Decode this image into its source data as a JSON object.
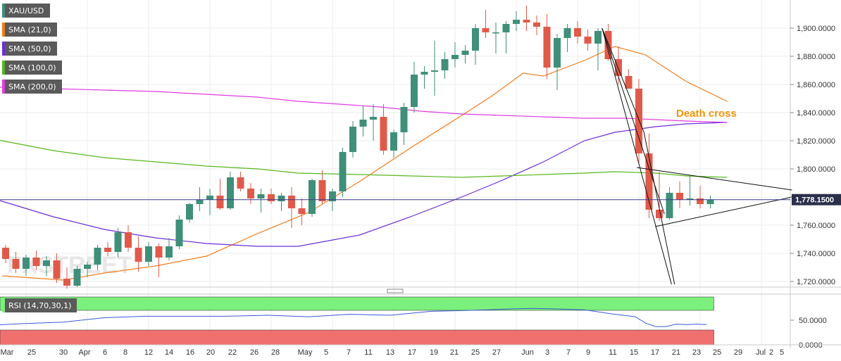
{
  "chart_data": {
    "type": "candlestick",
    "symbol": "XAU/USD",
    "price_axis": {
      "ylim": [
        1716,
        1920
      ],
      "ticks": [
        "1,720.0000",
        "1,740.0000",
        "1,760.0000",
        "1,780.0000",
        "1,800.0000",
        "1,820.0000",
        "1,840.0000",
        "1,860.0000",
        "1,880.0000",
        "1,900.0000"
      ],
      "current_price": 1778.15,
      "current_price_label": "1,778.1500"
    },
    "rsi_axis": {
      "ylim": [
        0,
        100
      ],
      "ticks": [
        "50.0000",
        "0.0000"
      ]
    },
    "x_ticks": [
      "Mar",
      "25",
      "30",
      "Apr",
      "6",
      "8",
      "12",
      "14",
      "16",
      "20",
      "22",
      "26",
      "28",
      "May",
      "5",
      "7",
      "11",
      "13",
      "17",
      "19",
      "21",
      "25",
      "27",
      "Jun",
      "3",
      "7",
      "9",
      "11",
      "15",
      "17",
      "21",
      "23",
      "25",
      "29",
      "Jul",
      "2",
      "5"
    ],
    "indicators": [
      {
        "name": "XAU/USD",
        "color": "#1a1a1a"
      },
      {
        "name": "SMA (21,0)",
        "color": "#f07c1c"
      },
      {
        "name": "SMA (50,0)",
        "color": "#6a2fd8"
      },
      {
        "name": "SMA (100,0)",
        "color": "#55b81c"
      },
      {
        "name": "SMA (200,0)",
        "color": "#e03ce0"
      }
    ],
    "rsi": {
      "name": "RSI (14,70,30,1)",
      "color": "#3a5ad8",
      "overbought_color": "#7cf07c",
      "oversold_color": "#f07070"
    },
    "candles": [
      {
        "o": 1744,
        "h": 1746,
        "l": 1733,
        "c": 1736
      },
      {
        "o": 1736,
        "h": 1741,
        "l": 1726,
        "c": 1729
      },
      {
        "o": 1729,
        "h": 1739,
        "l": 1724,
        "c": 1737
      },
      {
        "o": 1737,
        "h": 1742,
        "l": 1728,
        "c": 1731
      },
      {
        "o": 1731,
        "h": 1738,
        "l": 1724,
        "c": 1735
      },
      {
        "o": 1735,
        "h": 1740,
        "l": 1719,
        "c": 1722
      },
      {
        "o": 1722,
        "h": 1730,
        "l": 1715,
        "c": 1717
      },
      {
        "o": 1717,
        "h": 1731,
        "l": 1716,
        "c": 1729
      },
      {
        "o": 1729,
        "h": 1734,
        "l": 1723,
        "c": 1732
      },
      {
        "o": 1732,
        "h": 1746,
        "l": 1728,
        "c": 1744
      },
      {
        "o": 1744,
        "h": 1748,
        "l": 1738,
        "c": 1741
      },
      {
        "o": 1741,
        "h": 1758,
        "l": 1737,
        "c": 1755
      },
      {
        "o": 1755,
        "h": 1760,
        "l": 1741,
        "c": 1744
      },
      {
        "o": 1744,
        "h": 1752,
        "l": 1727,
        "c": 1734
      },
      {
        "o": 1734,
        "h": 1748,
        "l": 1731,
        "c": 1745
      },
      {
        "o": 1745,
        "h": 1747,
        "l": 1723,
        "c": 1737
      },
      {
        "o": 1737,
        "h": 1751,
        "l": 1735,
        "c": 1745
      },
      {
        "o": 1745,
        "h": 1767,
        "l": 1743,
        "c": 1764
      },
      {
        "o": 1764,
        "h": 1776,
        "l": 1762,
        "c": 1775
      },
      {
        "o": 1775,
        "h": 1787,
        "l": 1770,
        "c": 1778
      },
      {
        "o": 1778,
        "h": 1786,
        "l": 1767,
        "c": 1781
      },
      {
        "o": 1781,
        "h": 1793,
        "l": 1771,
        "c": 1772
      },
      {
        "o": 1772,
        "h": 1798,
        "l": 1771,
        "c": 1794
      },
      {
        "o": 1794,
        "h": 1798,
        "l": 1784,
        "c": 1786
      },
      {
        "o": 1786,
        "h": 1790,
        "l": 1775,
        "c": 1779
      },
      {
        "o": 1779,
        "h": 1786,
        "l": 1769,
        "c": 1782
      },
      {
        "o": 1782,
        "h": 1786,
        "l": 1775,
        "c": 1777
      },
      {
        "o": 1777,
        "h": 1783,
        "l": 1770,
        "c": 1781
      },
      {
        "o": 1781,
        "h": 1787,
        "l": 1758,
        "c": 1772
      },
      {
        "o": 1772,
        "h": 1779,
        "l": 1760,
        "c": 1768
      },
      {
        "o": 1768,
        "h": 1793,
        "l": 1766,
        "c": 1792
      },
      {
        "o": 1792,
        "h": 1799,
        "l": 1775,
        "c": 1777
      },
      {
        "o": 1777,
        "h": 1786,
        "l": 1770,
        "c": 1784
      },
      {
        "o": 1784,
        "h": 1815,
        "l": 1780,
        "c": 1812
      },
      {
        "o": 1812,
        "h": 1834,
        "l": 1808,
        "c": 1830
      },
      {
        "o": 1830,
        "h": 1845,
        "l": 1823,
        "c": 1835
      },
      {
        "o": 1835,
        "h": 1846,
        "l": 1820,
        "c": 1837
      },
      {
        "o": 1837,
        "h": 1846,
        "l": 1810,
        "c": 1813
      },
      {
        "o": 1813,
        "h": 1828,
        "l": 1808,
        "c": 1826
      },
      {
        "o": 1826,
        "h": 1847,
        "l": 1817,
        "c": 1844
      },
      {
        "o": 1844,
        "h": 1876,
        "l": 1840,
        "c": 1867
      },
      {
        "o": 1867,
        "h": 1873,
        "l": 1857,
        "c": 1869
      },
      {
        "o": 1869,
        "h": 1891,
        "l": 1852,
        "c": 1870
      },
      {
        "o": 1870,
        "h": 1883,
        "l": 1864,
        "c": 1878
      },
      {
        "o": 1878,
        "h": 1890,
        "l": 1872,
        "c": 1881
      },
      {
        "o": 1881,
        "h": 1888,
        "l": 1875,
        "c": 1884
      },
      {
        "o": 1884,
        "h": 1903,
        "l": 1874,
        "c": 1900
      },
      {
        "o": 1900,
        "h": 1913,
        "l": 1893,
        "c": 1897
      },
      {
        "o": 1897,
        "h": 1904,
        "l": 1882,
        "c": 1897
      },
      {
        "o": 1897,
        "h": 1905,
        "l": 1882,
        "c": 1903
      },
      {
        "o": 1903,
        "h": 1912,
        "l": 1898,
        "c": 1906
      },
      {
        "o": 1906,
        "h": 1916,
        "l": 1898,
        "c": 1904
      },
      {
        "o": 1904,
        "h": 1909,
        "l": 1895,
        "c": 1901
      },
      {
        "o": 1901,
        "h": 1910,
        "l": 1864,
        "c": 1872
      },
      {
        "o": 1872,
        "h": 1896,
        "l": 1856,
        "c": 1893
      },
      {
        "o": 1893,
        "h": 1903,
        "l": 1883,
        "c": 1900
      },
      {
        "o": 1900,
        "h": 1905,
        "l": 1889,
        "c": 1894
      },
      {
        "o": 1894,
        "h": 1899,
        "l": 1884,
        "c": 1889
      },
      {
        "o": 1889,
        "h": 1900,
        "l": 1870,
        "c": 1898
      },
      {
        "o": 1898,
        "h": 1903,
        "l": 1877,
        "c": 1878
      },
      {
        "o": 1878,
        "h": 1887,
        "l": 1860,
        "c": 1866
      },
      {
        "o": 1866,
        "h": 1871,
        "l": 1857,
        "c": 1857
      },
      {
        "o": 1857,
        "h": 1864,
        "l": 1804,
        "c": 1811
      },
      {
        "o": 1811,
        "h": 1825,
        "l": 1765,
        "c": 1771
      },
      {
        "o": 1771,
        "h": 1798,
        "l": 1763,
        "c": 1765
      },
      {
        "o": 1765,
        "h": 1787,
        "l": 1764,
        "c": 1783
      },
      {
        "o": 1783,
        "h": 1791,
        "l": 1772,
        "c": 1778
      },
      {
        "o": 1778,
        "h": 1795,
        "l": 1774,
        "c": 1779
      },
      {
        "o": 1779,
        "h": 1788,
        "l": 1772,
        "c": 1775
      },
      {
        "o": 1775,
        "h": 1781,
        "l": 1772,
        "c": 1778
      }
    ],
    "sma": {
      "SMA (21,0)": [
        [
          0,
          1724
        ],
        [
          6,
          1721
        ],
        [
          10,
          1726
        ],
        [
          15,
          1731
        ],
        [
          20,
          1738
        ],
        [
          25,
          1754
        ],
        [
          30,
          1769
        ],
        [
          35,
          1791
        ],
        [
          40,
          1815
        ],
        [
          45,
          1838
        ],
        [
          48,
          1852
        ],
        [
          51,
          1868
        ],
        [
          53,
          1866
        ],
        [
          57,
          1877
        ],
        [
          60,
          1887
        ],
        [
          63,
          1881
        ],
        [
          67,
          1862
        ],
        [
          71,
          1848
        ]
      ],
      "SMA (50,0)": [
        [
          -6,
          1792
        ],
        [
          0,
          1777
        ],
        [
          5,
          1766
        ],
        [
          10,
          1757
        ],
        [
          15,
          1751
        ],
        [
          20,
          1747
        ],
        [
          25,
          1745
        ],
        [
          29,
          1745
        ],
        [
          35,
          1753
        ],
        [
          40,
          1766
        ],
        [
          45,
          1780
        ],
        [
          49,
          1792
        ],
        [
          53,
          1805
        ],
        [
          57,
          1820
        ],
        [
          60,
          1826
        ],
        [
          64,
          1830
        ],
        [
          67,
          1832
        ],
        [
          71,
          1833
        ]
      ],
      "SMA (100,0)": [
        [
          -6,
          1830
        ],
        [
          0,
          1820
        ],
        [
          5,
          1813
        ],
        [
          10,
          1808
        ],
        [
          15,
          1805
        ],
        [
          20,
          1802
        ],
        [
          25,
          1800
        ],
        [
          29,
          1797
        ],
        [
          35,
          1796
        ],
        [
          40,
          1795
        ],
        [
          45,
          1794
        ],
        [
          49,
          1795
        ],
        [
          53,
          1796
        ],
        [
          57,
          1797
        ],
        [
          60,
          1798
        ],
        [
          64,
          1797
        ],
        [
          67,
          1795
        ],
        [
          71,
          1794
        ]
      ],
      "SMA (200,0)": [
        [
          -6,
          1860
        ],
        [
          0,
          1858
        ],
        [
          5,
          1857
        ],
        [
          10,
          1856
        ],
        [
          15,
          1855
        ],
        [
          20,
          1853
        ],
        [
          25,
          1851
        ],
        [
          29,
          1848
        ],
        [
          33,
          1846
        ],
        [
          37,
          1844
        ],
        [
          41,
          1841
        ],
        [
          45,
          1839
        ],
        [
          49,
          1838
        ],
        [
          53,
          1837
        ],
        [
          57,
          1836
        ],
        [
          61,
          1836
        ],
        [
          64,
          1835
        ],
        [
          67,
          1834
        ],
        [
          71,
          1833
        ]
      ]
    },
    "rsi_values": [
      [
        -6,
        37
      ],
      [
        -2,
        39
      ],
      [
        2,
        43
      ],
      [
        6,
        46
      ],
      [
        10,
        55
      ],
      [
        14,
        58
      ],
      [
        18,
        58
      ],
      [
        22,
        58
      ],
      [
        26,
        60
      ],
      [
        30,
        57
      ],
      [
        34,
        62
      ],
      [
        38,
        60
      ],
      [
        42,
        68
      ],
      [
        46,
        70
      ],
      [
        50,
        73
      ],
      [
        52,
        74
      ],
      [
        54,
        73
      ],
      [
        57,
        71
      ],
      [
        60,
        62
      ],
      [
        62,
        57
      ],
      [
        63,
        44
      ],
      [
        64,
        37
      ],
      [
        65,
        37
      ],
      [
        66,
        42
      ],
      [
        67,
        41
      ],
      [
        68,
        42
      ],
      [
        69,
        41
      ]
    ],
    "annotations": [
      {
        "text": "Death cross",
        "color": "#f0960a"
      }
    ],
    "watermark": "FXSTREET"
  }
}
